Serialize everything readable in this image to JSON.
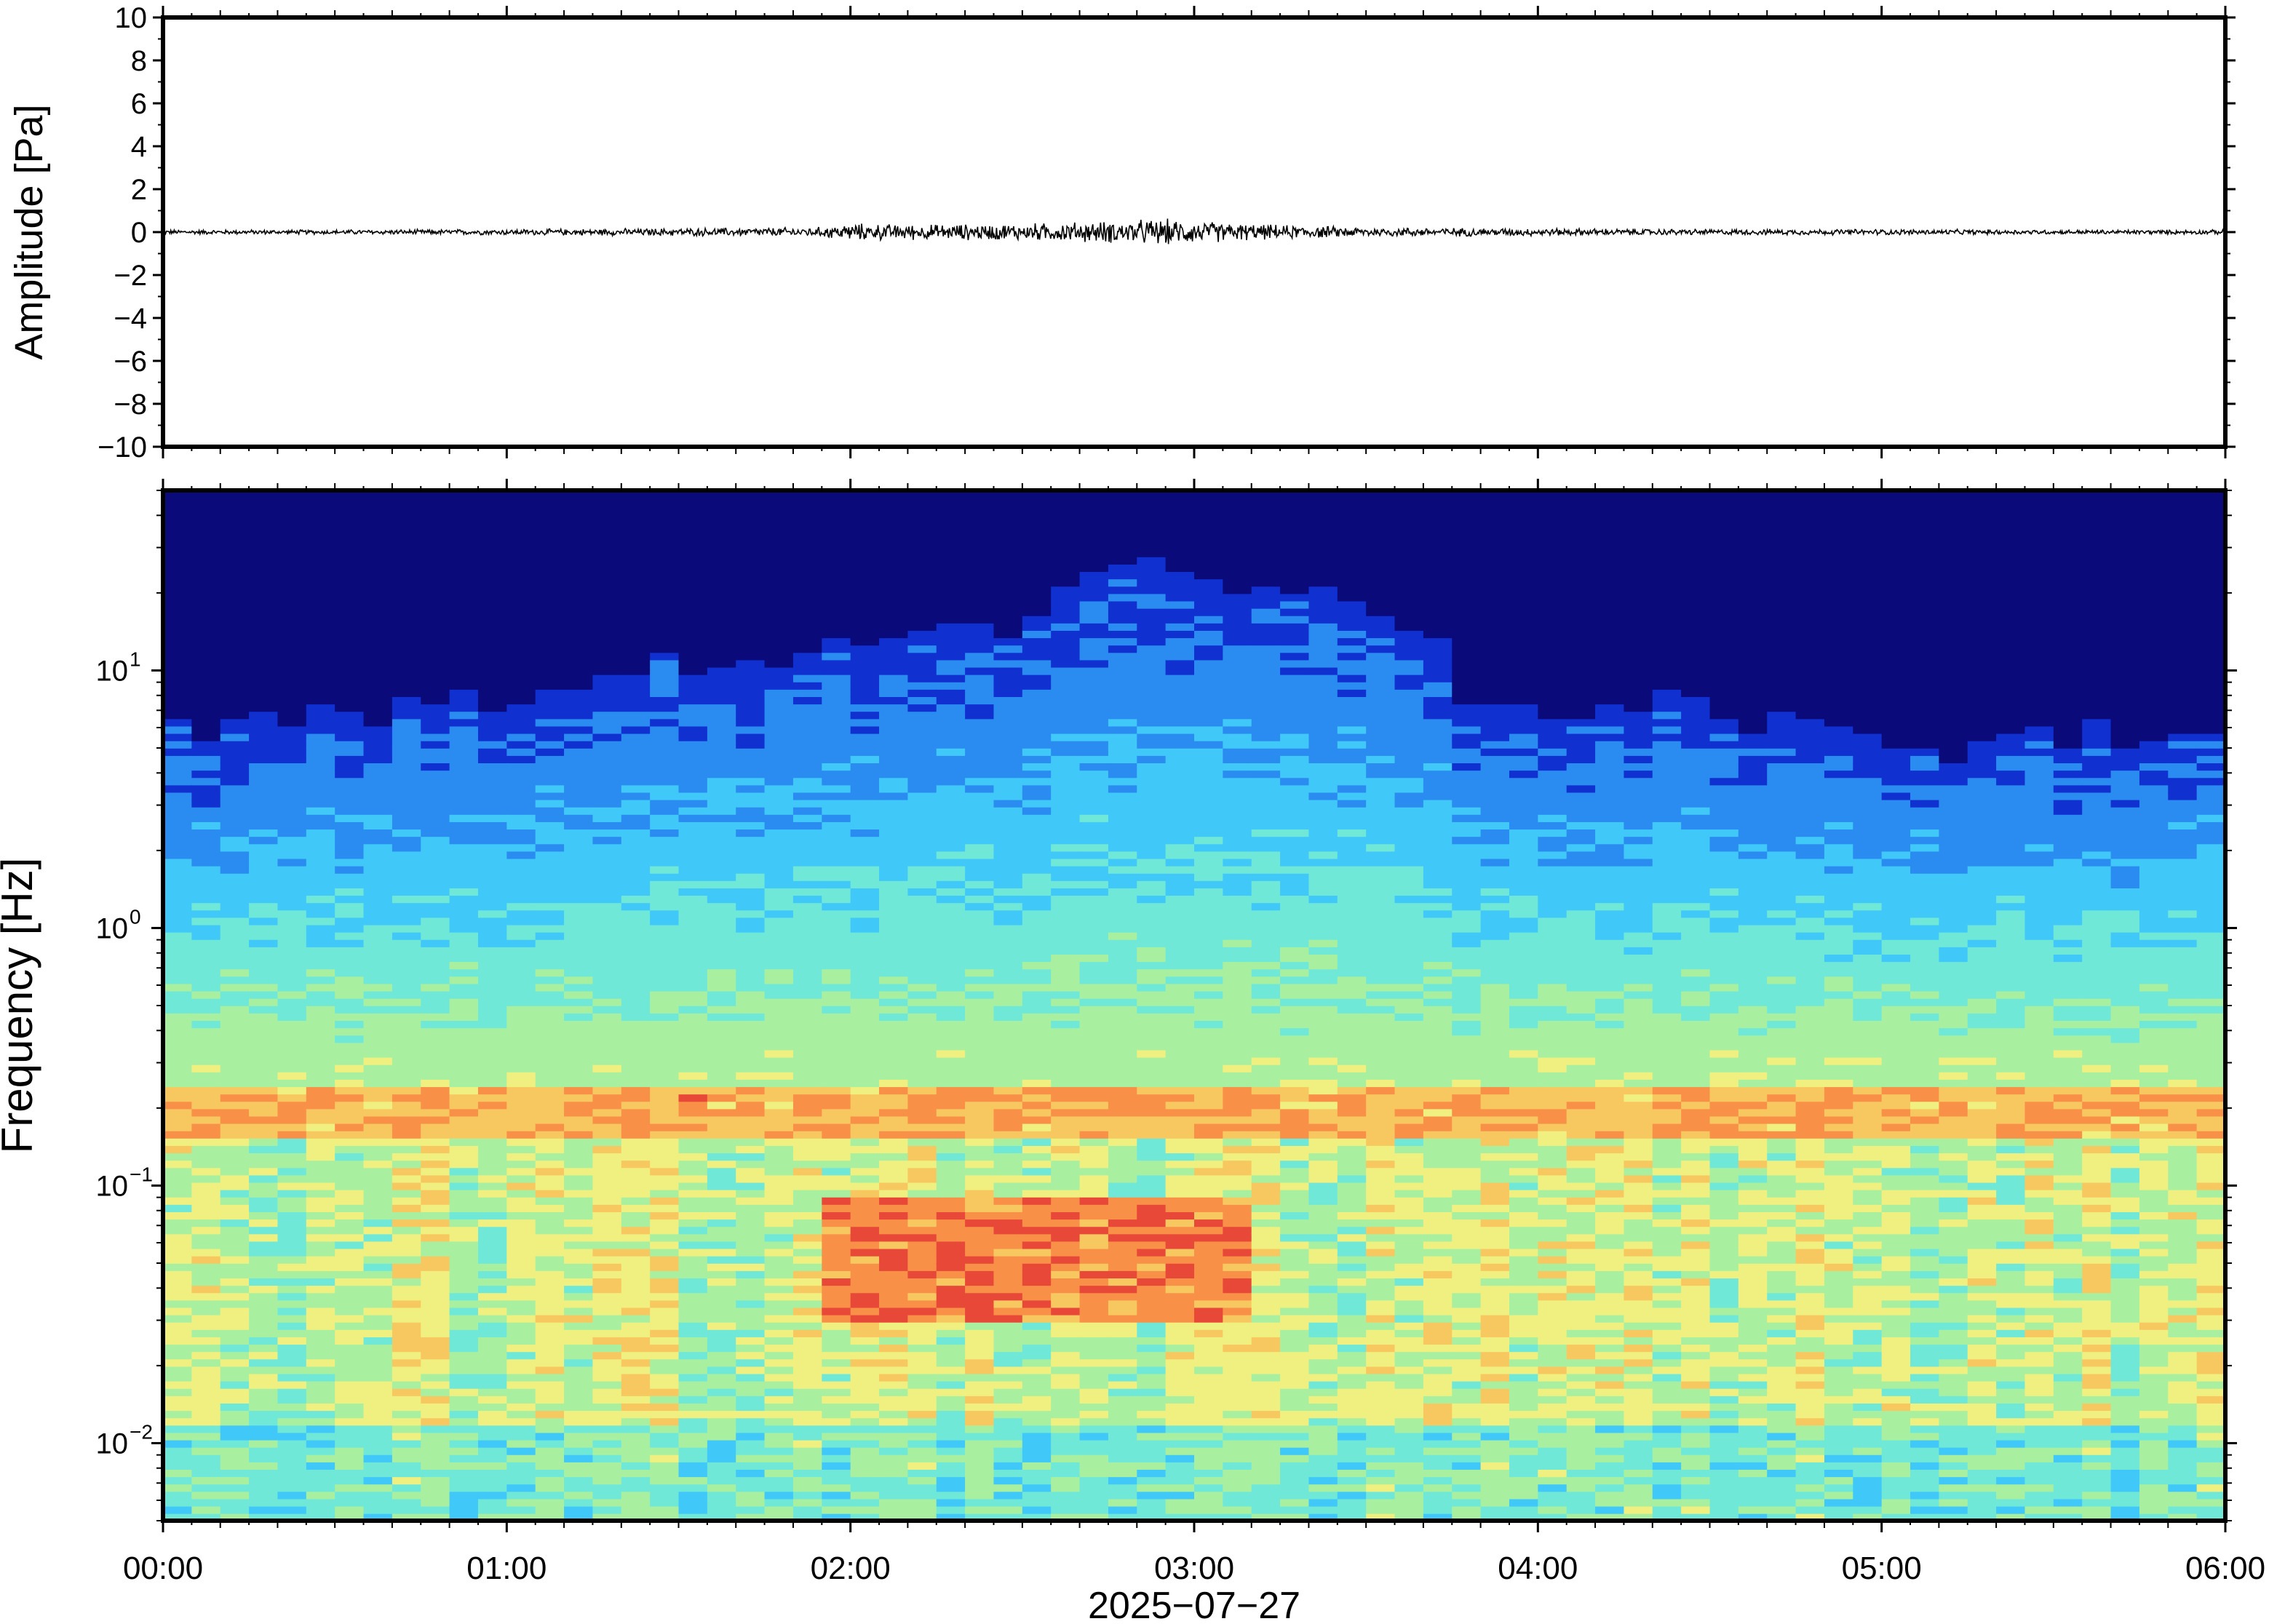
{
  "chart_data": [
    {
      "type": "line",
      "ylabel": "Amplitude [Pa]",
      "ylim": [
        -10,
        10
      ],
      "yticks": [
        10,
        8,
        6,
        4,
        2,
        0,
        -2,
        -4,
        -6,
        -8,
        -10
      ],
      "ytick_labels": [
        "10",
        "8",
        "6",
        "4",
        "2",
        "0",
        "−2",
        "−4",
        "−6",
        "−8",
        "−10"
      ],
      "xlim_hours": [
        0,
        6
      ],
      "series": [
        {
          "values_note": "",
          "envelope_hours": [
            0,
            0.5,
            1.0,
            1.5,
            1.9,
            2.0,
            2.2,
            2.5,
            2.8,
            2.9,
            3.0,
            3.2,
            3.5,
            4.0,
            4.5,
            5.0,
            5.5,
            6.0
          ],
          "envelope_pa": [
            0.12,
            0.12,
            0.15,
            0.2,
            0.25,
            0.45,
            0.4,
            0.45,
            0.6,
            0.7,
            0.6,
            0.4,
            0.25,
            0.2,
            0.15,
            0.15,
            0.12,
            0.12
          ],
          "color": "#000000"
        }
      ],
      "grid": false
    },
    {
      "type": "heatmap",
      "ylabel": "Frequency [Hz]",
      "yscale": "log",
      "ylim": [
        0.005,
        50
      ],
      "major_yticks": [
        0.01,
        0.1,
        1,
        10
      ],
      "major_ytick_labels": [
        {
          "base": "10",
          "exp": "−2"
        },
        {
          "base": "10",
          "exp": "−1"
        },
        {
          "base": "10",
          "exp": "0"
        },
        {
          "base": "10",
          "exp": "1"
        }
      ],
      "xlim_hours": [
        0,
        6
      ],
      "xticks": [
        "00:00",
        "01:00",
        "02:00",
        "03:00",
        "04:00",
        "05:00",
        "06:00"
      ],
      "xlabel": "2025−07−27",
      "colormap": [
        "#0a0a7a",
        "#1030d0",
        "#2a8cf0",
        "#40c8f8",
        "#70e8d8",
        "#a8f0a0",
        "#f0f080",
        "#f8c860",
        "#f89048",
        "#e84838"
      ],
      "upper_edge_hours": [
        0,
        0.25,
        0.5,
        0.75,
        1.0,
        1.25,
        1.5,
        1.75,
        2.0,
        2.25,
        2.5,
        2.75,
        3.0,
        3.25,
        3.5,
        3.65,
        3.75,
        4.0,
        4.25,
        4.5,
        4.75,
        5.0,
        5.25,
        5.5,
        5.75,
        6.0
      ],
      "upper_edge_hz": [
        6,
        6,
        7,
        7.5,
        8,
        9,
        11,
        10,
        14,
        15,
        15,
        25,
        25,
        20,
        18,
        16,
        9,
        7,
        8,
        7,
        6,
        5,
        5,
        5.5,
        6,
        7
      ],
      "hot_band_hz": [
        0.15,
        0.25
      ],
      "hot_spot": {
        "hours": [
          1.9,
          3.2
        ],
        "hz": [
          0.03,
          0.09
        ]
      },
      "grid": false
    }
  ]
}
